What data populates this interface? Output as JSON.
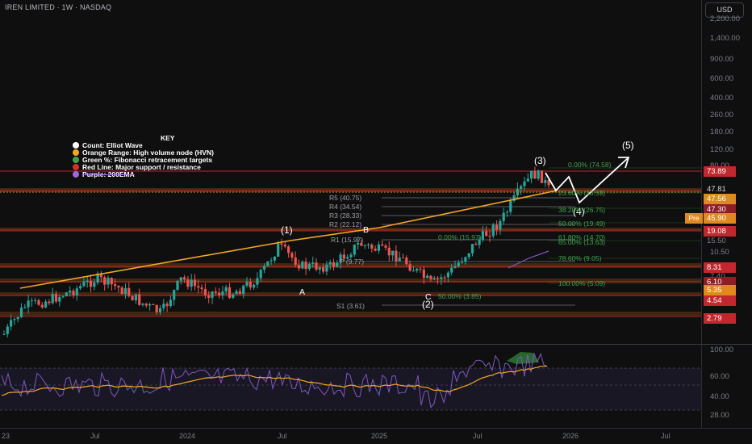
{
  "header": {
    "title": "IREN LIMITED · 1W · NASDAQ"
  },
  "currency": "USD",
  "price_axis": {
    "ticks": [
      "2,200.00",
      "1,400.00",
      "900.00",
      "600.00",
      "400.00",
      "260.00",
      "180.00",
      "120.00",
      "80.00",
      "10.50",
      "7.40"
    ]
  },
  "rsi_axis": {
    "ticks": [
      "100.00",
      "60.00",
      "40.00",
      "28.00"
    ]
  },
  "time_axis": {
    "ticks": [
      "23",
      "Jul",
      "2024",
      "Jul",
      "2025",
      "Jul",
      "2026",
      "Jul"
    ]
  },
  "badges": [
    {
      "label": "73.89",
      "color": "#c2272d"
    },
    {
      "label": "47.81",
      "color": "none"
    },
    {
      "label": "47.56",
      "color": "#e08a1e"
    },
    {
      "label": "47.30",
      "color": "#8b1f23"
    },
    {
      "label": "45.90",
      "color": "#e08a1e"
    },
    {
      "label": "19.08",
      "color": "#c2272d"
    },
    {
      "label": "15.50",
      "color": "none"
    },
    {
      "label": "8.31",
      "color": "#c2272d"
    },
    {
      "label": "6.10",
      "color": "#8b1f23"
    },
    {
      "label": "5.35",
      "color": "#e08a1e"
    },
    {
      "label": "4.54",
      "color": "#c2272d"
    },
    {
      "label": "2.79",
      "color": "#c2272d"
    }
  ],
  "pre_label": "Pre",
  "key": {
    "title": "KEY",
    "items": [
      {
        "text": "Count: Elliot Wave",
        "color": "#ffffff"
      },
      {
        "text": "Orange Range: High volume node (HVN)",
        "color": "#f5a623"
      },
      {
        "text": "Green %: Fibonacci retracement targets",
        "color": "#3fa34d"
      },
      {
        "text": "Red Line: Major support / resistance",
        "color": "#d32f2f"
      },
      {
        "text": "Purple: 200EMA",
        "color": "#9c6bd8"
      }
    ]
  },
  "waves": [
    "(1)",
    "(2)",
    "(3)",
    "(4)",
    "(5)",
    "A",
    "B",
    "C"
  ],
  "pivots": [
    "R5 (40.75)",
    "R4 (34.54)",
    "R3 (28.33)",
    "R2 (22.12)",
    "R1 (15.97)",
    "P (9.77)",
    "S1 (3.61)"
  ],
  "fibs": [
    "0.00% (74.58)",
    "23.60% (33.59)",
    "38.20% (26.75)",
    "50.00% (19.49)",
    "61.80% (14.70)",
    "65.00% (13.63)",
    "78.60% (9.05)",
    "100.00% (5.09)",
    "0.00% (15.97)",
    "50.00% (3.85)"
  ],
  "colors": {
    "bull": "#26a69a",
    "bear": "#ef5350",
    "trend": "#f5a623",
    "support": "#c2272d",
    "rsi": "#7e57c2",
    "rsi_ma": "#f5a623",
    "hvn": "#6b3a12"
  },
  "rsi_levels": [
    "70",
    "50",
    "30"
  ]
}
